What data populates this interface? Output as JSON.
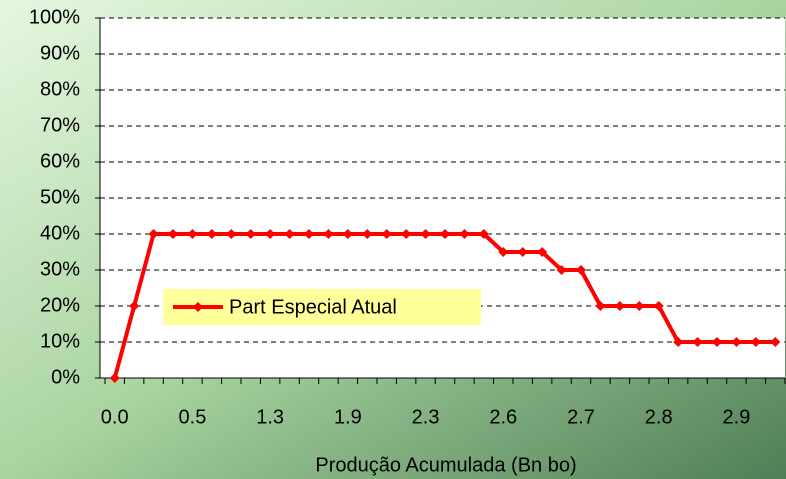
{
  "chart_data": {
    "type": "line",
    "x_label": "Produção Acumulada (Bn bo)",
    "categories": [
      "0.0",
      null,
      null,
      null,
      "0.5",
      null,
      null,
      null,
      "1.3",
      null,
      null,
      null,
      "1.9",
      null,
      null,
      null,
      "2.3",
      null,
      null,
      null,
      "2.6",
      null,
      null,
      null,
      "2.7",
      null,
      null,
      null,
      "2.8",
      null,
      null,
      null,
      "2.9",
      null,
      null
    ],
    "series": [
      {
        "name": "Part Especial Atual",
        "color": "#ff0000",
        "values": [
          0,
          20,
          40,
          40,
          40,
          40,
          40,
          40,
          40,
          40,
          40,
          40,
          40,
          40,
          40,
          40,
          40,
          40,
          40,
          40,
          35,
          35,
          35,
          30,
          30,
          20,
          20,
          20,
          20,
          10,
          10,
          10,
          10,
          10,
          10
        ]
      }
    ],
    "ylim": [
      0,
      100
    ],
    "yticks": [
      {
        "value": 0,
        "label": "0%"
      },
      {
        "value": 10,
        "label": "10%"
      },
      {
        "value": 20,
        "label": "20%"
      },
      {
        "value": 30,
        "label": "30%"
      },
      {
        "value": 40,
        "label": "40%"
      },
      {
        "value": 50,
        "label": "50%"
      },
      {
        "value": 60,
        "label": "60%"
      },
      {
        "value": 70,
        "label": "70%"
      },
      {
        "value": 80,
        "label": "80%"
      },
      {
        "value": 90,
        "label": "90%"
      },
      {
        "value": 100,
        "label": "100%"
      }
    ],
    "grid": true,
    "legend": "left"
  }
}
